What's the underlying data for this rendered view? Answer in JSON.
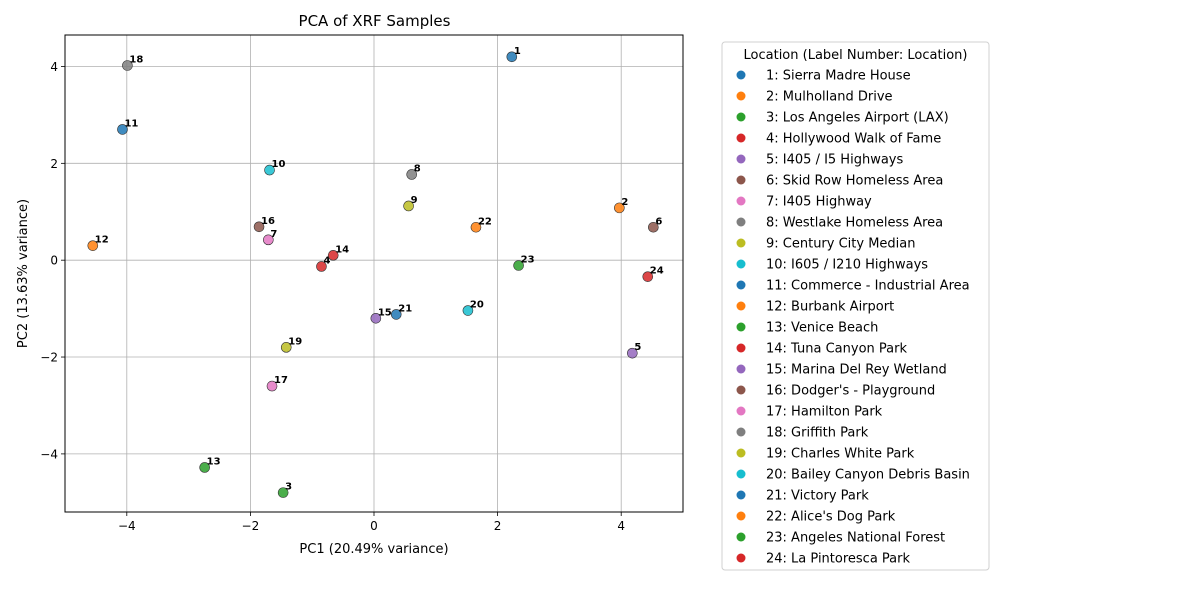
{
  "chart_data": {
    "type": "scatter",
    "title": "PCA of XRF Samples",
    "xlabel": "PC1 (20.49% variance)",
    "ylabel": "PC2 (13.63% variance)",
    "xlim": [
      -5,
      5
    ],
    "ylim": [
      -5.2,
      4.65
    ],
    "xticks": [
      -4,
      -2,
      0,
      2,
      4
    ],
    "yticks": [
      -4,
      -2,
      0,
      2,
      4
    ],
    "xtick_labels": [
      "−4",
      "−2",
      "0",
      "2",
      "4"
    ],
    "ytick_labels": [
      "−4",
      "−2",
      "0",
      "2",
      "4"
    ],
    "grid": true,
    "legend_position": "outside-right",
    "legend_title": "Location (Label Number: Location)",
    "points": [
      {
        "label": "1",
        "x": 2.23,
        "y": 4.2,
        "color": "#1f77b4",
        "legend": "1: Sierra Madre House"
      },
      {
        "label": "2",
        "x": 3.97,
        "y": 1.08,
        "color": "#ff7f0e",
        "legend": "2: Mulholland Drive"
      },
      {
        "label": "3",
        "x": -1.47,
        "y": -4.8,
        "color": "#2ca02c",
        "legend": "3: Los Angeles Airport (LAX)"
      },
      {
        "label": "4",
        "x": -0.85,
        "y": -0.13,
        "color": "#d62728",
        "legend": "4: Hollywood Walk of Fame"
      },
      {
        "label": "5",
        "x": 4.18,
        "y": -1.92,
        "color": "#9467bd",
        "legend": "5: I405 / I5 Highways"
      },
      {
        "label": "6",
        "x": 4.52,
        "y": 0.68,
        "color": "#8c564b",
        "legend": "6: Skid Row Homeless Area"
      },
      {
        "label": "7",
        "x": -1.71,
        "y": 0.42,
        "color": "#e377c2",
        "legend": "7: I405 Highway"
      },
      {
        "label": "8",
        "x": 0.61,
        "y": 1.77,
        "color": "#7f7f7f",
        "legend": "8: Westlake Homeless Area"
      },
      {
        "label": "9",
        "x": 0.56,
        "y": 1.12,
        "color": "#bcbd22",
        "legend": "9: Century City Median"
      },
      {
        "label": "10",
        "x": -1.69,
        "y": 1.86,
        "color": "#17becf",
        "legend": "10: I605 / I210 Highways"
      },
      {
        "label": "11",
        "x": -4.07,
        "y": 2.7,
        "color": "#1f77b4",
        "legend": "11: Commerce - Industrial Area"
      },
      {
        "label": "12",
        "x": -4.55,
        "y": 0.3,
        "color": "#ff7f0e",
        "legend": "12: Burbank Airport"
      },
      {
        "label": "13",
        "x": -2.74,
        "y": -4.28,
        "color": "#2ca02c",
        "legend": "13: Venice Beach"
      },
      {
        "label": "14",
        "x": -0.66,
        "y": 0.1,
        "color": "#d62728",
        "legend": "14: Tuna Canyon Park"
      },
      {
        "label": "15",
        "x": 0.03,
        "y": -1.2,
        "color": "#9467bd",
        "legend": "15: Marina Del Rey Wetland"
      },
      {
        "label": "16",
        "x": -1.86,
        "y": 0.69,
        "color": "#8c564b",
        "legend": "16: Dodger's - Playground"
      },
      {
        "label": "17",
        "x": -1.65,
        "y": -2.6,
        "color": "#e377c2",
        "legend": "17: Hamilton Park"
      },
      {
        "label": "18",
        "x": -3.99,
        "y": 4.02,
        "color": "#7f7f7f",
        "legend": "18: Griffith Park"
      },
      {
        "label": "19",
        "x": -1.42,
        "y": -1.8,
        "color": "#bcbd22",
        "legend": "19: Charles White Park"
      },
      {
        "label": "20",
        "x": 1.52,
        "y": -1.04,
        "color": "#17becf",
        "legend": "20: Bailey Canyon Debris Basin"
      },
      {
        "label": "21",
        "x": 0.36,
        "y": -1.12,
        "color": "#1f77b4",
        "legend": "21: Victory Park"
      },
      {
        "label": "22",
        "x": 1.65,
        "y": 0.68,
        "color": "#ff7f0e",
        "legend": "22: Alice's Dog Park"
      },
      {
        "label": "23",
        "x": 2.34,
        "y": -0.11,
        "color": "#2ca02c",
        "legend": "23: Angeles National Forest"
      },
      {
        "label": "24",
        "x": 4.43,
        "y": -0.34,
        "color": "#d62728",
        "legend": "24: La Pintoresca Park"
      }
    ]
  }
}
